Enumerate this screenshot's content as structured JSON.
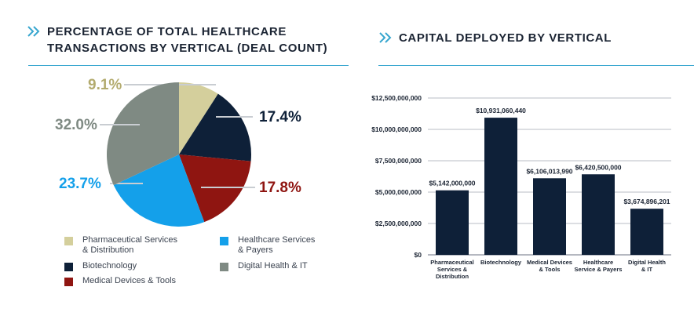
{
  "pie_panel": {
    "title_line1": "PERCENTAGE OF TOTAL HEALTHCARE",
    "title_line2": "TRANSACTIONS BY VERTICAL (DEAL COUNT)",
    "icon": "double-chevron-right-icon"
  },
  "bar_panel": {
    "title": "CAPITAL DEPLOYED BY VERTICAL",
    "icon": "double-chevron-right-icon"
  },
  "colors": {
    "accent": "#37a6cf",
    "pharma": "#d4cf9c",
    "biotech": "#0e2038",
    "meddev": "#8f1511",
    "healthsvc": "#14a0ea",
    "digital": "#7f8a83",
    "bar": "#0e2038",
    "grid": "#b9bec6"
  },
  "chart_data": [
    {
      "type": "pie",
      "title": "PERCENTAGE OF TOTAL HEALTHCARE TRANSACTIONS BY VERTICAL (DEAL COUNT)",
      "slices": [
        {
          "label": "Pharmaceutical Services & Distribution",
          "value": 9.1,
          "display": "9.1%",
          "color": "#d4cf9c",
          "label_color": "#b3ab6e"
        },
        {
          "label": "Biotechnology",
          "value": 17.4,
          "display": "17.4%",
          "color": "#0e2038",
          "label_color": "#0e2038"
        },
        {
          "label": "Medical Devices & Tools",
          "value": 17.8,
          "display": "17.8%",
          "color": "#8f1511",
          "label_color": "#8f1511"
        },
        {
          "label": "Healthcare Services & Payers",
          "value": 23.7,
          "display": "23.7%",
          "color": "#14a0ea",
          "label_color": "#14a0ea"
        },
        {
          "label": "Digital Health & IT",
          "value": 32.0,
          "display": "32.0%",
          "color": "#7f8a83",
          "label_color": "#7f8a83"
        }
      ],
      "legend": [
        {
          "line1": "Pharmaceutical Services",
          "line2": "& Distribution",
          "color": "#d4cf9c"
        },
        {
          "line1": "Healthcare Services",
          "line2": "& Payers",
          "color": "#14a0ea"
        },
        {
          "line1": "Biotechnology",
          "line2": "",
          "color": "#0e2038"
        },
        {
          "line1": "Digital Health & IT",
          "line2": "",
          "color": "#7f8a83"
        },
        {
          "line1": "Medical Devices & Tools",
          "line2": "",
          "color": "#8f1511"
        }
      ]
    },
    {
      "type": "bar",
      "title": "CAPITAL DEPLOYED BY VERTICAL",
      "categories": [
        [
          "Pharmaceutical",
          "Services &",
          "Distribution"
        ],
        [
          "Biotechnology"
        ],
        [
          "Medical Devices",
          "& Tools"
        ],
        [
          "Healthcare",
          "Service & Payers"
        ],
        [
          "Digital Health",
          "& IT"
        ]
      ],
      "values": [
        5142000000,
        10931060440,
        6106013990,
        6420500000,
        3674896201
      ],
      "value_labels": [
        "$5,142,000,000",
        "$10,931,060,440",
        "$6,106,013,990",
        "$6,420,500,000",
        "$3,674,896,201"
      ],
      "yticks": [
        0,
        2500000000,
        5000000000,
        7500000000,
        10000000000,
        12500000000
      ],
      "ytick_labels": [
        "$0",
        "$2,500,000,000",
        "$5,000,000,000",
        "$7,500,000,000",
        "$10,000,000,000",
        "$12,500,000,000"
      ],
      "ylim": [
        0,
        12500000000
      ],
      "grid": true
    }
  ]
}
